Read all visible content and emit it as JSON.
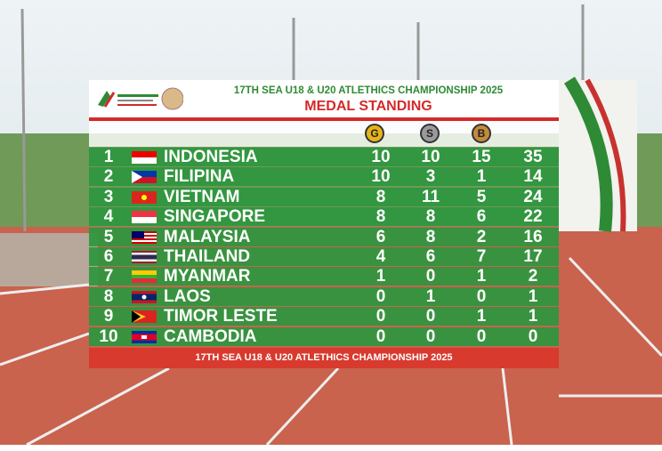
{
  "header": {
    "title": "17TH SEA U18 & U20 ATLETHICS CHAMPIONSHIP 2025",
    "subtitle": "MEDAL STANDING"
  },
  "table": {
    "columns": [
      "G",
      "S",
      "B"
    ],
    "rows": [
      [
        "1",
        "INDONESIA",
        "10",
        "10",
        "15",
        "35"
      ],
      [
        "2",
        "FILIPINA",
        "10",
        "3",
        "1",
        "14"
      ],
      [
        "3",
        "VIETNAM",
        "8",
        "11",
        "5",
        "24"
      ],
      [
        "4",
        "SINGAPORE",
        "8",
        "8",
        "6",
        "22"
      ],
      [
        "5",
        "MALAYSIA",
        "6",
        "8",
        "2",
        "16"
      ],
      [
        "6",
        "THAILAND",
        "4",
        "6",
        "7",
        "17"
      ],
      [
        "7",
        "MYANMAR",
        "1",
        "0",
        "1",
        "2"
      ],
      [
        "8",
        "LAOS",
        "0",
        "1",
        "0",
        "1"
      ],
      [
        "9",
        "TIMOR LESTE",
        "0",
        "0",
        "1",
        "1"
      ],
      [
        "10",
        "CAMBODIA",
        "0",
        "0",
        "0",
        "0"
      ]
    ]
  },
  "footer": {
    "text": "17TH SEA U18 & U20 ATLETHICS CHAMPIONSHIP 2025"
  }
}
